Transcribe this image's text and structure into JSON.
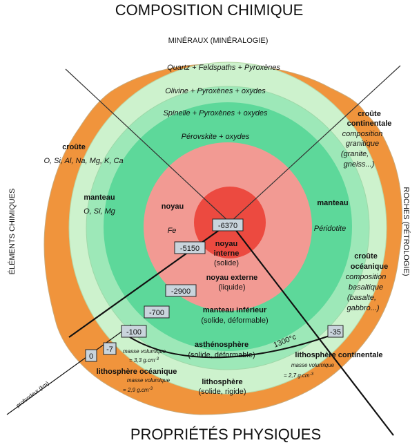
{
  "titles": {
    "top": "COMPOSITION CHIMIQUE",
    "bottom": "PROPRIÉTÉS PHYSIQUES",
    "top_sub": "MINÉRAUX (MINÉRALOGIE)",
    "left_vertical": "ÉLÉMENTS CHIMIQUES",
    "right_vertical": "ROCHES (PÉTROLOGIE)"
  },
  "minerals": {
    "m1": "Quartz + Feldspaths + Pyroxènes",
    "m2": "Olivine + Pyroxènes + oxydes",
    "m3": "Spinelle + Pyroxènes + oxydes",
    "m4": "Pérovskite + oxydes"
  },
  "elements": {
    "croute": "croûte",
    "croute_el": "O, Si, Al, Na, Mg, K, Ca",
    "manteau": "manteau",
    "manteau_el": "O, Si, Mg",
    "noyau": "noyau",
    "noyau_el": "Fe"
  },
  "rocks": {
    "cc1": "croûte",
    "cc2": "continentale",
    "cc_c1": "composition",
    "cc_c2": "granitique",
    "cc_c3": "(granite,",
    "cc_c4": "gneiss...)",
    "manteau": "manteau",
    "manteau_r": "Péridotite",
    "co1": "croûte",
    "co2": "océanique",
    "co_c1": "composition",
    "co_c2": "basaltique",
    "co_c3": "(basalte,",
    "co_c4": "gabbro...)"
  },
  "physical": {
    "ni1": "noyau",
    "ni2": "interne",
    "ni3": "(solide)",
    "ne1": "noyau externe",
    "ne2": "(liquide)",
    "mi1": "manteau inférieur",
    "mi2": "(solide, déformable)",
    "as1": "asthénosphère",
    "as2": "(solide, déformable)",
    "temp": "1300°c",
    "lc": "lithosphère continentale",
    "lc_mv": "masse volumique",
    "lc_val": "= 2,7 g.cm",
    "lo1": "lithosphère océanique",
    "lo_mv": "masse volumique",
    "lo_val": "= 2,9 g.cm",
    "l1": "lithosphère",
    "l2": "(solide, rigide)",
    "as_mv": "masse volumique",
    "as_val": "= 3,3 g.cm",
    "exp": "-3",
    "depth_label": "profondeur (km)"
  },
  "depths": {
    "d6370": "-6370",
    "d5150": "-5150",
    "d2900": "-2900",
    "d700": "-700",
    "d100": "-100",
    "d7": "-7",
    "d0": "0",
    "d35": "-35"
  },
  "colors": {
    "crust": "#f0943c",
    "upper_mantle_outer": "#cdf2cd",
    "upper_mantle_mid": "#9de8b8",
    "lower_mantle": "#5dd89a",
    "outer_core": "#f29a93",
    "inner_core": "#ec4a40",
    "ring_border": "#c9aa7a"
  }
}
